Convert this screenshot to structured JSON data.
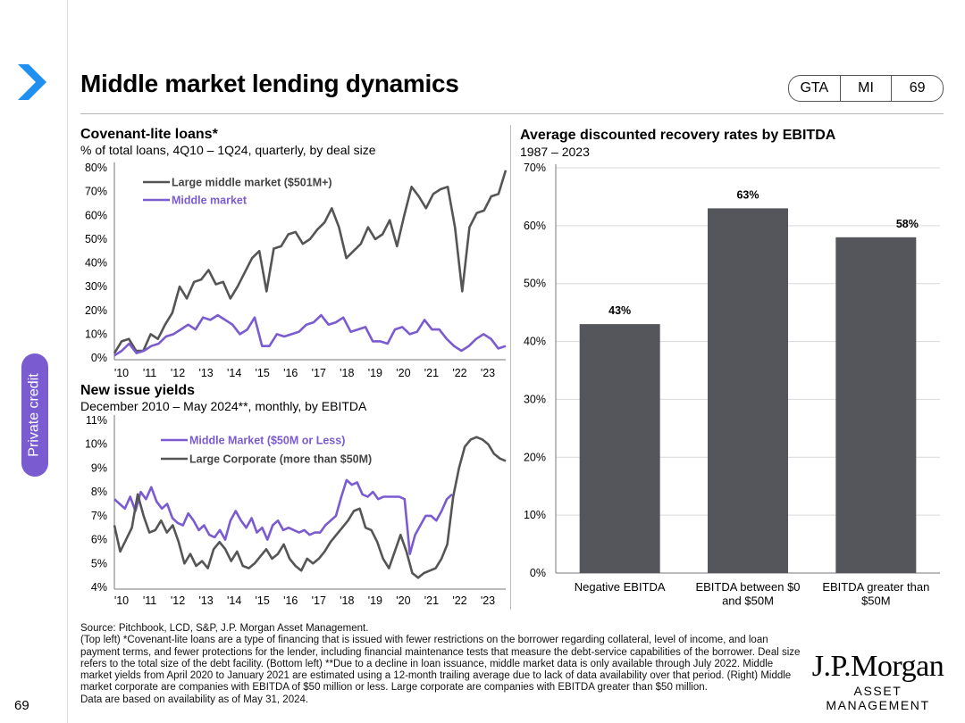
{
  "page": {
    "title": "Middle market lending dynamics",
    "number": "69",
    "section": "Private credit"
  },
  "header_tags": [
    "GTA",
    "MI",
    "69"
  ],
  "colors": {
    "dark": "#555555",
    "purple": "#7a5bd0",
    "bar": "#54565b",
    "grid": "#d9d9d9"
  },
  "chart_data": [
    {
      "type": "line",
      "title": "Covenant-lite loans*",
      "subtitle": "% of total loans, 4Q10 – 1Q24, quarterly, by deal size",
      "xlabels": [
        "'10",
        "'11",
        "'12",
        "'13",
        "'14",
        "'15",
        "'16",
        "'17",
        "'18",
        "'19",
        "'20",
        "'21",
        "'22",
        "'23"
      ],
      "ylabels": [
        "80%",
        "70%",
        "60%",
        "50%",
        "40%",
        "30%",
        "20%",
        "10%",
        "0%"
      ],
      "ylim": [
        0,
        80
      ],
      "x_range": [
        2010.75,
        2024.0
      ],
      "series": [
        {
          "name": "Large middle market ($501M+)",
          "color": "#555555",
          "values": [
            2,
            7,
            8,
            3,
            3,
            10,
            8,
            14,
            19,
            30,
            25,
            32,
            33,
            37,
            31,
            32,
            25,
            30,
            36,
            42,
            45,
            28,
            46,
            47,
            52,
            53,
            48,
            50,
            54,
            57,
            63,
            55,
            42,
            45,
            48,
            55,
            50,
            52,
            58,
            47,
            60,
            72,
            68,
            63,
            69,
            71,
            72,
            55,
            28,
            55,
            61,
            62,
            68,
            69,
            79
          ]
        },
        {
          "name": "Middle market",
          "color": "#7a5bd0",
          "values": [
            1,
            3,
            6,
            2,
            3,
            5,
            6,
            9,
            10,
            12,
            14,
            12,
            17,
            16,
            18,
            16,
            14,
            10,
            12,
            17,
            5,
            5,
            10,
            9,
            10,
            11,
            14,
            15,
            18,
            14,
            15,
            17,
            11,
            12,
            13,
            7,
            7,
            6,
            12,
            13,
            10,
            11,
            16,
            12,
            12,
            8,
            5,
            3,
            5,
            8,
            10,
            8,
            4,
            5
          ]
        }
      ]
    },
    {
      "type": "line",
      "title": "New issue yields",
      "subtitle": "December 2010 – May 2024**, monthly, by EBITDA",
      "xlabels": [
        "'10",
        "'11",
        "'12",
        "'13",
        "'14",
        "'15",
        "'16",
        "'17",
        "'18",
        "'19",
        "'20",
        "'21",
        "'22",
        "'23"
      ],
      "ylabels": [
        "11%",
        "10%",
        "9%",
        "8%",
        "7%",
        "6%",
        "5%",
        "4%"
      ],
      "ylim": [
        4,
        11
      ],
      "x_range": [
        2010.9,
        2024.4
      ],
      "series": [
        {
          "name": "Middle Market ($50M or Less)",
          "color": "#7a5bd0",
          "end_year": 2022.55,
          "values": [
            7.7,
            7.5,
            7.3,
            7.8,
            7.2,
            8.0,
            7.7,
            8.2,
            7.6,
            7.3,
            7.5,
            6.9,
            6.7,
            6.6,
            7.1,
            6.8,
            6.4,
            6.6,
            6.2,
            6.1,
            6.4,
            6.0,
            6.8,
            7.2,
            6.8,
            6.5,
            6.9,
            6.3,
            6.5,
            6.0,
            6.6,
            6.8,
            6.4,
            6.5,
            6.4,
            6.3,
            6.4,
            6.2,
            6.3,
            6.3,
            6.6,
            6.8,
            7.0,
            7.8,
            8.5,
            8.3,
            8.4,
            7.9,
            7.8,
            8.0,
            7.7,
            7.8,
            7.8,
            7.8,
            7.8,
            7.7,
            5.4,
            6.2,
            6.6,
            7.0,
            7.0,
            6.8,
            7.2,
            7.7,
            7.9
          ]
        },
        {
          "name": "Large Corporate (more than $50M)",
          "color": "#555555",
          "end_year": 2024.4,
          "values": [
            6.6,
            5.5,
            6.0,
            6.5,
            7.9,
            7.0,
            6.3,
            6.4,
            6.8,
            6.3,
            6.6,
            5.9,
            5.0,
            5.4,
            4.9,
            5.1,
            4.8,
            5.6,
            5.9,
            5.6,
            5.1,
            5.5,
            4.9,
            4.8,
            5.0,
            5.3,
            5.6,
            5.2,
            5.4,
            5.8,
            5.2,
            4.9,
            4.7,
            5.2,
            5.0,
            5.2,
            5.5,
            5.9,
            6.2,
            6.5,
            6.8,
            7.2,
            7.3,
            6.5,
            6.4,
            5.9,
            5.2,
            4.8,
            5.5,
            6.2,
            5.5,
            4.6,
            4.4,
            4.6,
            4.7,
            4.8,
            5.2,
            5.8,
            7.8,
            9.0,
            9.9,
            10.2,
            10.3,
            10.2,
            10.0,
            9.6,
            9.4,
            9.3
          ]
        }
      ]
    },
    {
      "type": "bar",
      "title": "Average discounted recovery rates by EBITDA",
      "subtitle": "1987 – 2023",
      "categories": [
        "Negative EBITDA",
        "EBITDA between $0 and $50M",
        "EBITDA greater than $50M"
      ],
      "category_lines": [
        [
          "Negative EBITDA"
        ],
        [
          "EBITDA between $0",
          "and $50M"
        ],
        [
          "EBITDA greater than",
          "$50M"
        ]
      ],
      "values": [
        43,
        63,
        58
      ],
      "data_labels": [
        "43%",
        "63%",
        "58%"
      ],
      "ylabels": [
        "70%",
        "60%",
        "50%",
        "40%",
        "30%",
        "20%",
        "10%",
        "0%"
      ],
      "ylim": [
        0,
        70
      ]
    }
  ],
  "footnotes": [
    "Source: Pitchbook, LCD, S&P, J.P. Morgan Asset Management.",
    "(Top left) *Covenant-lite loans are a type of financing that is issued with fewer restrictions on the borrower regarding collateral, level of income, and loan payment terms, and fewer protections for the lender, including financial maintenance tests that measure the debt-service capabilities of the borrower. Deal size refers to the total size of the debt facility. (Bottom left) **Due to a decline in loan issuance, middle market data is only available through July 2022. Middle market yields from April 2020 to January 2021 are estimated using a 12-month trailing average due to lack of data availability over that period. (Right) Middle market corporate are companies with EBITDA of $50 million or less. Large corporate are companies with EBITDA greater than $50 million.",
    "Data are based on availability as of May 31, 2024."
  ],
  "logo": {
    "line1": "J.P.Morgan",
    "line2": "ASSET MANAGEMENT"
  }
}
